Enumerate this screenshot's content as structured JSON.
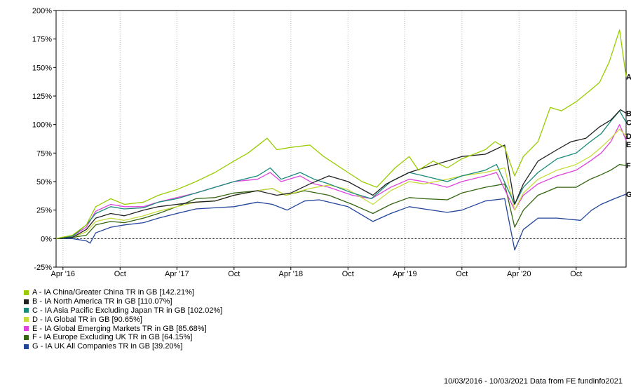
{
  "chart_data": {
    "type": "line",
    "y_unit": "%",
    "ylim": [
      -25,
      200
    ],
    "y_ticks": [
      "200%",
      "175%",
      "150%",
      "125%",
      "100%",
      "75%",
      "50%",
      "25%",
      "0%",
      "-25%"
    ],
    "y_tick_values": [
      200,
      175,
      150,
      125,
      100,
      75,
      50,
      25,
      0,
      -25
    ],
    "x_range": [
      "2016-03-10",
      "2021-03-10"
    ],
    "x_ticks": [
      {
        "label": "Apr '16",
        "date": "2016-04-01"
      },
      {
        "label": "Oct",
        "date": "2016-10-01"
      },
      {
        "label": "Apr '17",
        "date": "2017-04-01"
      },
      {
        "label": "Oct",
        "date": "2017-10-01"
      },
      {
        "label": "Apr '18",
        "date": "2018-04-01"
      },
      {
        "label": "Oct",
        "date": "2018-10-01"
      },
      {
        "label": "Apr '19",
        "date": "2019-04-01"
      },
      {
        "label": "Oct",
        "date": "2019-10-01"
      },
      {
        "label": "Apr '20",
        "date": "2020-04-01"
      },
      {
        "label": "Oct",
        "date": "2020-10-01"
      }
    ],
    "grid": "vertical dotted",
    "zero_line": "dotted",
    "legend_position": "bottom-left",
    "series": [
      {
        "key": "A",
        "name": "A - IA China/Greater China TR in GB [142.21%]",
        "color": "#99cc00",
        "points": [
          [
            "2016-03-10",
            0
          ],
          [
            "2016-05-01",
            3
          ],
          [
            "2016-06-15",
            12
          ],
          [
            "2016-07-15",
            28
          ],
          [
            "2016-09-01",
            35
          ],
          [
            "2016-10-15",
            30
          ],
          [
            "2016-12-15",
            32
          ],
          [
            "2017-02-01",
            38
          ],
          [
            "2017-04-01",
            43
          ],
          [
            "2017-06-01",
            50
          ],
          [
            "2017-08-01",
            58
          ],
          [
            "2017-10-01",
            68
          ],
          [
            "2017-11-15",
            75
          ],
          [
            "2018-01-15",
            88
          ],
          [
            "2018-02-15",
            78
          ],
          [
            "2018-04-01",
            80
          ],
          [
            "2018-06-01",
            82
          ],
          [
            "2018-07-15",
            72
          ],
          [
            "2018-10-01",
            58
          ],
          [
            "2018-11-15",
            50
          ],
          [
            "2019-01-01",
            45
          ],
          [
            "2019-03-01",
            62
          ],
          [
            "2019-04-15",
            72
          ],
          [
            "2019-05-15",
            60
          ],
          [
            "2019-07-01",
            68
          ],
          [
            "2019-08-15",
            62
          ],
          [
            "2019-10-01",
            70
          ],
          [
            "2019-12-15",
            78
          ],
          [
            "2020-01-15",
            85
          ],
          [
            "2020-02-15",
            80
          ],
          [
            "2020-03-18",
            55
          ],
          [
            "2020-04-15",
            72
          ],
          [
            "2020-06-01",
            85
          ],
          [
            "2020-07-10",
            115
          ],
          [
            "2020-08-15",
            112
          ],
          [
            "2020-10-01",
            120
          ],
          [
            "2020-11-15",
            130
          ],
          [
            "2020-12-15",
            137
          ],
          [
            "2021-01-15",
            155
          ],
          [
            "2021-02-17",
            183
          ],
          [
            "2021-03-10",
            142
          ]
        ]
      },
      {
        "key": "B",
        "name": "B - IA North America TR in GB [110.07%]",
        "color": "#222222",
        "points": [
          [
            "2016-03-10",
            0
          ],
          [
            "2016-05-01",
            1
          ],
          [
            "2016-06-15",
            8
          ],
          [
            "2016-07-15",
            18
          ],
          [
            "2016-09-01",
            22
          ],
          [
            "2016-10-15",
            20
          ],
          [
            "2016-12-15",
            25
          ],
          [
            "2017-02-01",
            28
          ],
          [
            "2017-04-01",
            30
          ],
          [
            "2017-06-01",
            32
          ],
          [
            "2017-08-01",
            33
          ],
          [
            "2017-10-01",
            38
          ],
          [
            "2017-12-15",
            42
          ],
          [
            "2018-02-15",
            38
          ],
          [
            "2018-04-01",
            40
          ],
          [
            "2018-06-01",
            48
          ],
          [
            "2018-08-01",
            55
          ],
          [
            "2018-10-01",
            50
          ],
          [
            "2018-12-20",
            38
          ],
          [
            "2019-02-01",
            48
          ],
          [
            "2019-04-15",
            58
          ],
          [
            "2019-06-01",
            62
          ],
          [
            "2019-08-15",
            68
          ],
          [
            "2019-10-01",
            72
          ],
          [
            "2019-12-15",
            74
          ],
          [
            "2020-02-15",
            82
          ],
          [
            "2020-03-18",
            30
          ],
          [
            "2020-04-15",
            48
          ],
          [
            "2020-06-01",
            68
          ],
          [
            "2020-08-01",
            78
          ],
          [
            "2020-09-15",
            85
          ],
          [
            "2020-11-01",
            88
          ],
          [
            "2020-12-15",
            98
          ],
          [
            "2021-01-20",
            104
          ],
          [
            "2021-02-20",
            113
          ],
          [
            "2021-03-10",
            110
          ]
        ]
      },
      {
        "key": "C",
        "name": "C - IA Asia Pacific Excluding Japan TR in GB [102.02%]",
        "color": "#1a8a7a",
        "points": [
          [
            "2016-03-10",
            0
          ],
          [
            "2016-05-01",
            2
          ],
          [
            "2016-06-15",
            12
          ],
          [
            "2016-07-15",
            22
          ],
          [
            "2016-09-01",
            28
          ],
          [
            "2016-10-15",
            26
          ],
          [
            "2016-12-15",
            27
          ],
          [
            "2017-02-01",
            32
          ],
          [
            "2017-04-01",
            35
          ],
          [
            "2017-06-01",
            40
          ],
          [
            "2017-08-01",
            45
          ],
          [
            "2017-10-01",
            50
          ],
          [
            "2017-12-15",
            55
          ],
          [
            "2018-01-25",
            62
          ],
          [
            "2018-03-01",
            52
          ],
          [
            "2018-05-01",
            58
          ],
          [
            "2018-06-15",
            52
          ],
          [
            "2018-08-01",
            48
          ],
          [
            "2018-10-15",
            40
          ],
          [
            "2018-12-15",
            35
          ],
          [
            "2019-02-15",
            50
          ],
          [
            "2019-04-15",
            58
          ],
          [
            "2019-06-01",
            55
          ],
          [
            "2019-08-15",
            50
          ],
          [
            "2019-10-01",
            55
          ],
          [
            "2019-12-15",
            60
          ],
          [
            "2020-01-20",
            65
          ],
          [
            "2020-03-18",
            30
          ],
          [
            "2020-04-15",
            45
          ],
          [
            "2020-06-01",
            58
          ],
          [
            "2020-08-01",
            70
          ],
          [
            "2020-10-01",
            75
          ],
          [
            "2020-11-15",
            85
          ],
          [
            "2020-12-20",
            92
          ],
          [
            "2021-01-20",
            103
          ],
          [
            "2021-02-17",
            112
          ],
          [
            "2021-03-10",
            102
          ]
        ]
      },
      {
        "key": "D",
        "name": "D - IA Global TR in GB [90.65%]",
        "color": "#c8dc3c",
        "points": [
          [
            "2016-03-10",
            0
          ],
          [
            "2016-05-01",
            1
          ],
          [
            "2016-06-15",
            6
          ],
          [
            "2016-07-15",
            15
          ],
          [
            "2016-09-01",
            18
          ],
          [
            "2016-10-15",
            16
          ],
          [
            "2016-12-15",
            20
          ],
          [
            "2017-02-01",
            24
          ],
          [
            "2017-04-01",
            28
          ],
          [
            "2017-06-01",
            32
          ],
          [
            "2017-08-01",
            33
          ],
          [
            "2017-10-01",
            38
          ],
          [
            "2017-12-15",
            42
          ],
          [
            "2018-02-01",
            44
          ],
          [
            "2018-03-15",
            38
          ],
          [
            "2018-06-01",
            44
          ],
          [
            "2018-08-01",
            47
          ],
          [
            "2018-10-01",
            43
          ],
          [
            "2018-12-20",
            30
          ],
          [
            "2019-02-15",
            42
          ],
          [
            "2019-04-15",
            50
          ],
          [
            "2019-06-01",
            48
          ],
          [
            "2019-08-15",
            52
          ],
          [
            "2019-10-01",
            55
          ],
          [
            "2019-12-15",
            58
          ],
          [
            "2020-02-15",
            62
          ],
          [
            "2020-03-18",
            25
          ],
          [
            "2020-04-15",
            40
          ],
          [
            "2020-06-01",
            52
          ],
          [
            "2020-08-01",
            60
          ],
          [
            "2020-10-01",
            65
          ],
          [
            "2020-11-15",
            72
          ],
          [
            "2020-12-20",
            80
          ],
          [
            "2021-01-20",
            88
          ],
          [
            "2021-02-17",
            96
          ],
          [
            "2021-03-10",
            90
          ]
        ]
      },
      {
        "key": "E",
        "name": "E - IA Global Emerging Markets TR in GB [85.68%]",
        "color": "#dd44dd",
        "points": [
          [
            "2016-03-10",
            0
          ],
          [
            "2016-05-01",
            2
          ],
          [
            "2016-06-15",
            10
          ],
          [
            "2016-07-15",
            24
          ],
          [
            "2016-09-01",
            30
          ],
          [
            "2016-10-15",
            28
          ],
          [
            "2016-12-15",
            28
          ],
          [
            "2017-02-01",
            32
          ],
          [
            "2017-04-01",
            36
          ],
          [
            "2017-06-01",
            40
          ],
          [
            "2017-08-01",
            45
          ],
          [
            "2017-10-01",
            50
          ],
          [
            "2017-12-15",
            52
          ],
          [
            "2018-01-25",
            58
          ],
          [
            "2018-03-01",
            50
          ],
          [
            "2018-05-01",
            55
          ],
          [
            "2018-06-15",
            48
          ],
          [
            "2018-08-01",
            45
          ],
          [
            "2018-10-15",
            38
          ],
          [
            "2018-12-15",
            35
          ],
          [
            "2019-02-15",
            45
          ],
          [
            "2019-04-15",
            52
          ],
          [
            "2019-06-01",
            50
          ],
          [
            "2019-08-15",
            45
          ],
          [
            "2019-10-01",
            50
          ],
          [
            "2019-12-15",
            55
          ],
          [
            "2020-01-20",
            58
          ],
          [
            "2020-03-18",
            25
          ],
          [
            "2020-04-15",
            38
          ],
          [
            "2020-06-01",
            48
          ],
          [
            "2020-08-01",
            55
          ],
          [
            "2020-10-01",
            60
          ],
          [
            "2020-11-15",
            68
          ],
          [
            "2020-12-20",
            75
          ],
          [
            "2021-01-20",
            85
          ],
          [
            "2021-02-17",
            100
          ],
          [
            "2021-03-10",
            86
          ]
        ]
      },
      {
        "key": "F",
        "name": "F - IA Europe Excluding UK TR in GB [64.15%]",
        "color": "#336611",
        "points": [
          [
            "2016-03-10",
            0
          ],
          [
            "2016-05-01",
            1
          ],
          [
            "2016-06-15",
            3
          ],
          [
            "2016-07-15",
            12
          ],
          [
            "2016-09-01",
            15
          ],
          [
            "2016-10-15",
            14
          ],
          [
            "2016-12-15",
            18
          ],
          [
            "2017-02-01",
            22
          ],
          [
            "2017-04-01",
            28
          ],
          [
            "2017-06-01",
            35
          ],
          [
            "2017-08-01",
            36
          ],
          [
            "2017-10-01",
            40
          ],
          [
            "2017-12-15",
            42
          ],
          [
            "2018-02-01",
            44
          ],
          [
            "2018-03-15",
            38
          ],
          [
            "2018-05-15",
            42
          ],
          [
            "2018-08-01",
            38
          ],
          [
            "2018-10-15",
            30
          ],
          [
            "2018-12-20",
            22
          ],
          [
            "2019-02-15",
            30
          ],
          [
            "2019-04-15",
            36
          ],
          [
            "2019-06-01",
            35
          ],
          [
            "2019-08-15",
            34
          ],
          [
            "2019-10-01",
            40
          ],
          [
            "2019-12-15",
            45
          ],
          [
            "2020-02-15",
            48
          ],
          [
            "2020-03-18",
            10
          ],
          [
            "2020-04-15",
            25
          ],
          [
            "2020-06-01",
            38
          ],
          [
            "2020-08-01",
            45
          ],
          [
            "2020-10-01",
            45
          ],
          [
            "2020-11-15",
            52
          ],
          [
            "2020-12-20",
            56
          ],
          [
            "2021-01-20",
            60
          ],
          [
            "2021-02-17",
            65
          ],
          [
            "2021-03-10",
            64
          ]
        ]
      },
      {
        "key": "G",
        "name": "G - IA UK All Companies TR in GB [39.20%]",
        "color": "#224499",
        "points": [
          [
            "2016-03-10",
            0
          ],
          [
            "2016-05-01",
            0
          ],
          [
            "2016-06-15",
            -2
          ],
          [
            "2016-06-27",
            -4
          ],
          [
            "2016-07-15",
            5
          ],
          [
            "2016-09-01",
            10
          ],
          [
            "2016-10-15",
            12
          ],
          [
            "2016-12-15",
            14
          ],
          [
            "2017-02-01",
            18
          ],
          [
            "2017-04-01",
            22
          ],
          [
            "2017-06-01",
            26
          ],
          [
            "2017-08-01",
            27
          ],
          [
            "2017-10-01",
            28
          ],
          [
            "2017-12-15",
            32
          ],
          [
            "2018-02-01",
            30
          ],
          [
            "2018-03-20",
            25
          ],
          [
            "2018-05-15",
            33
          ],
          [
            "2018-07-01",
            34
          ],
          [
            "2018-10-01",
            28
          ],
          [
            "2018-12-20",
            15
          ],
          [
            "2019-02-15",
            22
          ],
          [
            "2019-04-15",
            28
          ],
          [
            "2019-06-01",
            26
          ],
          [
            "2019-08-15",
            23
          ],
          [
            "2019-10-01",
            25
          ],
          [
            "2019-12-15",
            33
          ],
          [
            "2020-02-15",
            35
          ],
          [
            "2020-03-18",
            -10
          ],
          [
            "2020-04-15",
            8
          ],
          [
            "2020-06-01",
            18
          ],
          [
            "2020-08-01",
            18
          ],
          [
            "2020-10-15",
            16
          ],
          [
            "2020-11-20",
            25
          ],
          [
            "2020-12-20",
            30
          ],
          [
            "2021-02-01",
            35
          ],
          [
            "2021-03-10",
            39
          ]
        ]
      }
    ]
  },
  "end_labels": [
    {
      "key": "A",
      "text": "A"
    },
    {
      "key": "B",
      "text": "B"
    },
    {
      "key": "C",
      "text": "C"
    },
    {
      "key": "D",
      "text": "D"
    },
    {
      "key": "E",
      "text": "E"
    },
    {
      "key": "F",
      "text": "F"
    },
    {
      "key": "G",
      "text": "G"
    }
  ],
  "footer": {
    "source_note": "10/03/2016 - 10/03/2021 Data from FE fundinfo2021"
  }
}
